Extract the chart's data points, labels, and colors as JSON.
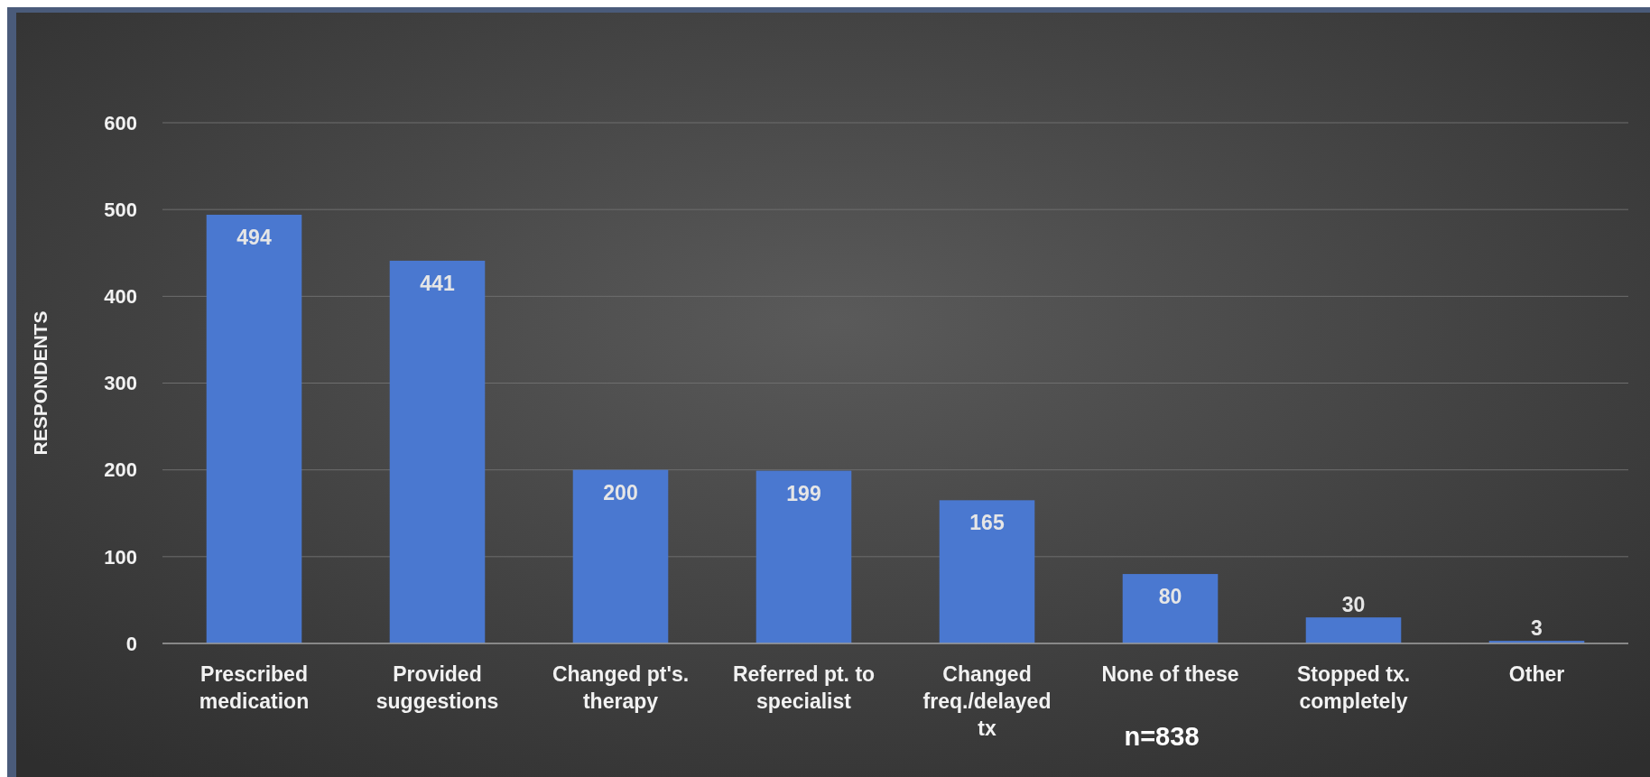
{
  "chart_data": {
    "type": "bar",
    "ylabel": "RESPONDENTS",
    "categories": [
      "Prescribed medication",
      "Provided suggestions",
      "Changed pt's. therapy",
      "Referred pt. to specialist",
      "Changed freq./delayed tx",
      "None of these",
      "Stopped tx. completely",
      "Other"
    ],
    "values": [
      494,
      441,
      200,
      199,
      165,
      80,
      30,
      3
    ],
    "color": "#4a78d0",
    "ylim": [
      0,
      600
    ],
    "yticks": [
      0,
      100,
      200,
      300,
      400,
      500,
      600
    ],
    "grid": "y",
    "data_labels": true,
    "annotations": [
      "n=838"
    ]
  }
}
